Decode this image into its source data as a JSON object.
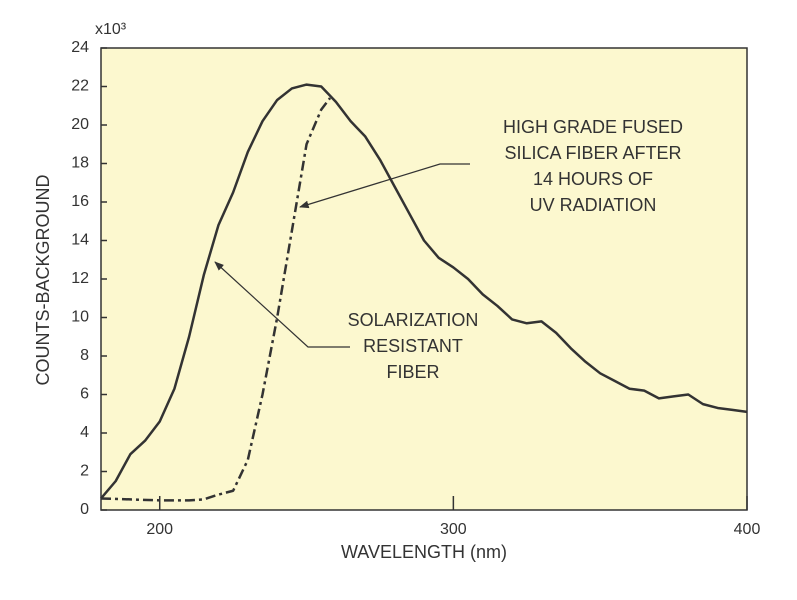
{
  "chart_data": {
    "type": "line",
    "x_label": "WAVELENGTH (nm)",
    "y_label": "COUNTS-BACKGROUND",
    "y_multiplier": "x10³",
    "xlim": [
      180,
      400
    ],
    "xticks": [
      200,
      300,
      400
    ],
    "ylim": [
      0,
      24
    ],
    "yticks": [
      0,
      2,
      4,
      6,
      8,
      10,
      12,
      14,
      16,
      18,
      20,
      22,
      24
    ],
    "background": "#fcf8cf",
    "series": [
      {
        "style": "solid",
        "color": "#333333",
        "x": [
          180,
          185,
          190,
          195,
          200,
          205,
          210,
          215,
          220,
          225,
          230,
          235,
          240,
          245,
          250,
          255,
          260,
          265,
          270,
          275,
          280,
          285,
          290,
          295,
          300,
          305,
          310,
          315,
          320,
          325,
          330,
          335,
          340,
          345,
          350,
          355,
          360,
          365,
          370,
          375,
          380,
          385,
          390,
          395,
          400
        ],
        "values": [
          0.6,
          1.5,
          2.9,
          3.6,
          4.6,
          6.3,
          9,
          12.2,
          14.8,
          16.5,
          18.6,
          20.2,
          21.3,
          21.9,
          22.1,
          22,
          21.2,
          20.2,
          19.4,
          18.2,
          16.8,
          15.4,
          14,
          13.1,
          12.6,
          12,
          11.2,
          10.6,
          9.9,
          9.7,
          9.8,
          9.2,
          8.4,
          7.7,
          7.1,
          6.7,
          6.3,
          6.2,
          5.8,
          5.9,
          6,
          5.5,
          5.3,
          5.2,
          5.1
        ]
      },
      {
        "style": "dashed",
        "color": "#333333",
        "x": [
          180,
          190,
          200,
          210,
          215,
          220,
          225,
          230,
          235,
          240,
          245,
          250,
          255,
          258
        ],
        "values": [
          0.6,
          0.55,
          0.5,
          0.5,
          0.55,
          0.8,
          1,
          2.6,
          6,
          10,
          14.5,
          19,
          20.8,
          21.4
        ]
      }
    ],
    "annotations": [
      {
        "lines": [
          "HIGH GRADE FUSED",
          "SILICA FIBER AFTER",
          "14 HOURS OF",
          "UV RADIATION"
        ]
      },
      {
        "lines": [
          "SOLARIZATION",
          "RESISTANT",
          "FIBER"
        ]
      }
    ]
  }
}
